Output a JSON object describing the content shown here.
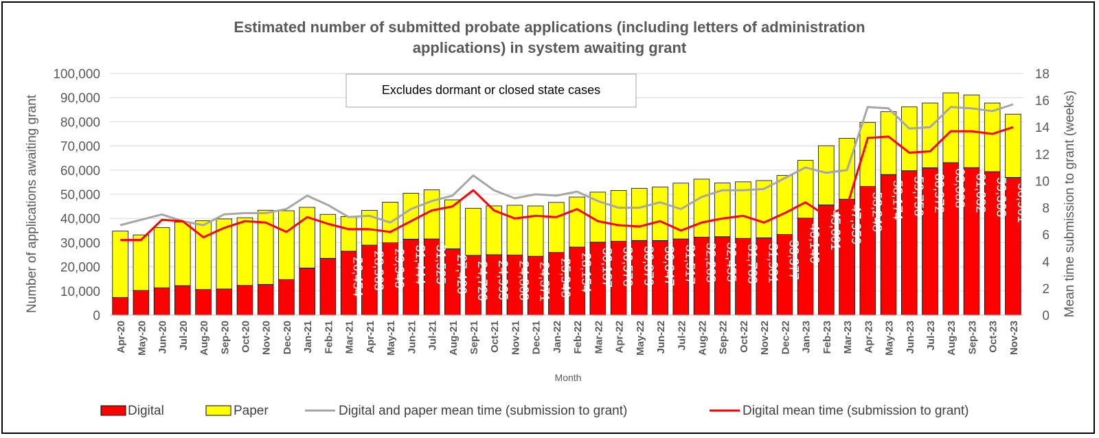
{
  "chart_data": {
    "type": "bar",
    "title": "Estimated number of submitted probate applications (including letters of administration applications) in system awaiting grant",
    "title_lines": [
      "Estimated number of submitted probate applications (including letters of administration",
      "applications) in system awaiting grant"
    ],
    "annotation": "Excludes dormant or closed state cases",
    "xlabel": "Month",
    "ylabel": "Number of applications awaiting grant",
    "y2label": "Mean time submission to grant (weeks)",
    "ylim": [
      0,
      100000
    ],
    "y2lim": [
      0,
      18
    ],
    "y_ticks": [
      "0",
      "10,000",
      "20,000",
      "30,000",
      "40,000",
      "50,000",
      "60,000",
      "70,000",
      "80,000",
      "90,000",
      "100,000"
    ],
    "y2_ticks": [
      "0",
      "2",
      "4",
      "6",
      "8",
      "10",
      "12",
      "14",
      "16",
      "18"
    ],
    "grid": true,
    "legend_position": "bottom",
    "categories": [
      "Apr-20",
      "May-20",
      "Jun-20",
      "Jul-20",
      "Aug-20",
      "Sep-20",
      "Oct-20",
      "Nov-20",
      "Dec-20",
      "Jan-21",
      "Feb-21",
      "Mar-21",
      "Apr-21",
      "May-21",
      "Jun-21",
      "Jul-21",
      "Aug-21",
      "Sep-21",
      "Oct-21",
      "Nov-21",
      "Dec-21",
      "Jan-22",
      "Feb-22",
      "Mar-22",
      "Apr-22",
      "May-22",
      "Jun-22",
      "Jul-22",
      "Aug-22",
      "Sep-22",
      "Oct-22",
      "Nov-22",
      "Dec-22",
      "Jan-23",
      "Feb-23",
      "Mar-23",
      "Apr-23",
      "May-23",
      "Jun-23",
      "Jul-23",
      "Aug-23",
      "Sep-23",
      "Oct-23",
      "Nov-23"
    ],
    "series": [
      {
        "name": "Digital",
        "type": "bar",
        "color": "#ff0000",
        "values": [
          7300,
          10200,
          11300,
          12200,
          10600,
          10800,
          12300,
          12700,
          14700,
          19500,
          23500,
          26454,
          28963,
          29946,
          31444,
          31525,
          27420,
          24726,
          24995,
          24868,
          24371,
          25940,
          28154,
          30187,
          30578,
          30879,
          30847,
          31517,
          32263,
          32455,
          31763,
          31981,
          33377,
          40140,
          45601,
          47959,
          53248,
          58174,
          59756,
          60972,
          63088,
          61032,
          59368,
          56961
        ],
        "labels": [
          "",
          "",
          "",
          "",
          "",
          "",
          "",
          "",
          "",
          "",
          "",
          "26,454",
          "28,963",
          "29,946",
          "31,444",
          "31,525",
          "27,420",
          "24,726",
          "24,995",
          "24,868",
          "24,371",
          "25,940",
          "28,154",
          "30,187",
          "30,578",
          "30,879",
          "30,847",
          "31,517",
          "32,263",
          "32,455",
          "31,763",
          "31,981",
          "33,377",
          "40,140",
          "45,601",
          "47,959",
          "53,248",
          "58,174",
          "59,756",
          "60,972",
          "63,088",
          "61,032",
          "59,368",
          "56,961"
        ]
      },
      {
        "name": "Paper",
        "type": "bar",
        "color": "#ffff00",
        "values": [
          27500,
          23000,
          24900,
          26300,
          28500,
          29000,
          28000,
          30700,
          28500,
          25100,
          18200,
          14300,
          14400,
          16800,
          19000,
          20300,
          20300,
          19500,
          20200,
          20600,
          20800,
          20700,
          20700,
          20700,
          21000,
          21600,
          22200,
          23100,
          24000,
          22200,
          23400,
          23700,
          24400,
          23900,
          24500,
          25200,
          26500,
          26000,
          26400,
          26800,
          28900,
          30100,
          28400,
          26200
        ]
      },
      {
        "name": "Digital and paper mean time (submission to grant)",
        "type": "line",
        "color": "#a6a6a6",
        "values": [
          6.7,
          7.1,
          7.5,
          7.0,
          6.7,
          7.5,
          7.6,
          7.6,
          7.9,
          8.9,
          8.2,
          7.3,
          7.4,
          6.9,
          7.9,
          8.5,
          8.9,
          10.4,
          9.3,
          8.7,
          9.0,
          8.9,
          9.2,
          8.5,
          8.0,
          8.0,
          8.4,
          7.9,
          8.8,
          9.3,
          9.3,
          9.4,
          10.2,
          11.0,
          10.6,
          10.8,
          15.5,
          15.4,
          13.9,
          14.0,
          15.5,
          15.4,
          15.2,
          15.7
        ]
      },
      {
        "name": "Digital mean time (submission to grant)",
        "type": "line",
        "color": "#ff0000",
        "values": [
          5.6,
          5.6,
          7.1,
          7.0,
          5.8,
          6.5,
          7.0,
          6.9,
          6.2,
          7.3,
          6.8,
          6.4,
          6.4,
          6.2,
          7.0,
          7.8,
          8.1,
          9.3,
          7.8,
          7.2,
          7.4,
          7.3,
          7.9,
          7.0,
          6.7,
          6.6,
          7.0,
          6.3,
          6.9,
          7.2,
          7.4,
          6.9,
          7.6,
          8.4,
          7.4,
          8.1,
          13.2,
          13.3,
          12.1,
          12.2,
          13.7,
          13.7,
          13.5,
          14.0
        ]
      }
    ]
  }
}
